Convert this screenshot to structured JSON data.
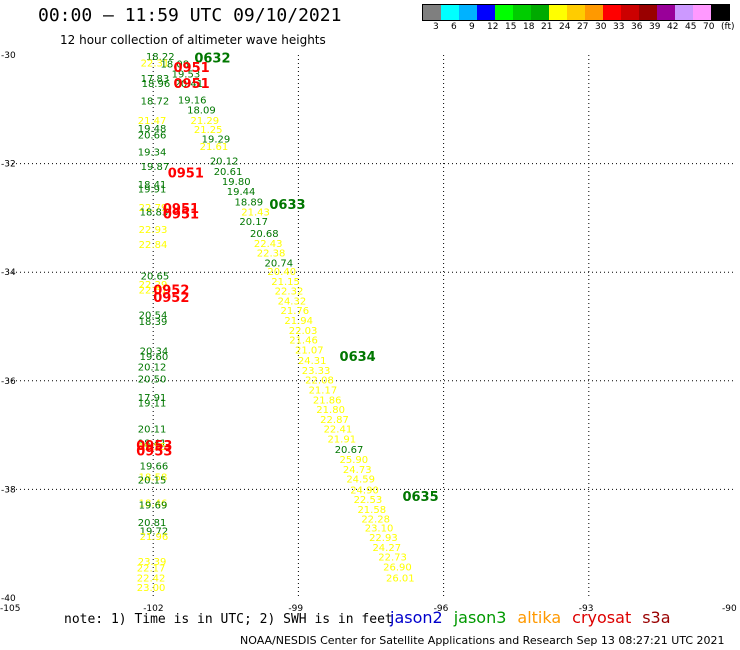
{
  "header": {
    "title": "00:00 – 11:59 UTC 09/10/2021",
    "subtitle": "12 hour collection of altimeter wave heights"
  },
  "legend": {
    "colors": [
      "#7f7f7f",
      "#00ffff",
      "#00b2ff",
      "#0000ff",
      "#00ff00",
      "#00cc00",
      "#00aa00",
      "#ffff00",
      "#ffcc00",
      "#ff9900",
      "#ff0000",
      "#cc0000",
      "#990000",
      "#990099",
      "#cc99ff",
      "#ff99ff",
      "#000000"
    ],
    "labels": [
      "3",
      "6",
      "9",
      "12",
      "15",
      "18",
      "21",
      "24",
      "27",
      "30",
      "33",
      "36",
      "39",
      "42",
      "45",
      "70",
      "(ft)"
    ]
  },
  "axes": {
    "lat_labels": [
      "-30",
      "-32",
      "-34",
      "-36",
      "-38",
      "-40"
    ],
    "lon_labels": [
      "-105",
      "-102",
      "-99",
      "-96",
      "-93",
      "-90"
    ]
  },
  "colors": {
    "green": "#007700",
    "yellow": "#ffff00",
    "red": "#ff0000"
  },
  "readings": [
    {
      "lon": -102.15,
      "lat": -30.02,
      "v": "18.22",
      "c": "green"
    },
    {
      "lon": -102.26,
      "lat": -30.14,
      "v": "22.31",
      "c": "yellow"
    },
    {
      "lon": -101.85,
      "lat": -30.16,
      "v": "18.08",
      "c": "green"
    },
    {
      "lon": -101.62,
      "lat": -30.34,
      "v": "19.53",
      "c": "green"
    },
    {
      "lon": -102.26,
      "lat": -30.42,
      "v": "17.83",
      "c": "green"
    },
    {
      "lon": -102.24,
      "lat": -30.52,
      "v": "18.96",
      "c": "green"
    },
    {
      "lon": -101.56,
      "lat": -30.52,
      "v": "20.41",
      "c": "green"
    },
    {
      "lon": -101.49,
      "lat": -30.82,
      "v": "19.16",
      "c": "green"
    },
    {
      "lon": -102.26,
      "lat": -30.84,
      "v": "18.72",
      "c": "green"
    },
    {
      "lon": -101.3,
      "lat": -31.0,
      "v": "18.09",
      "c": "green"
    },
    {
      "lon": -102.32,
      "lat": -31.2,
      "v": "21.47",
      "c": "yellow"
    },
    {
      "lon": -101.23,
      "lat": -31.2,
      "v": "21.29",
      "c": "yellow"
    },
    {
      "lon": -102.32,
      "lat": -31.34,
      "v": "19.48",
      "c": "green"
    },
    {
      "lon": -101.16,
      "lat": -31.36,
      "v": "21.25",
      "c": "yellow"
    },
    {
      "lon": -102.32,
      "lat": -31.46,
      "v": "20.66",
      "c": "green"
    },
    {
      "lon": -101.0,
      "lat": -31.54,
      "v": "19.29",
      "c": "green"
    },
    {
      "lon": -101.04,
      "lat": -31.68,
      "v": "21.61",
      "c": "yellow"
    },
    {
      "lon": -102.32,
      "lat": -31.78,
      "v": "19.34",
      "c": "green"
    },
    {
      "lon": -100.83,
      "lat": -31.94,
      "v": "20.12",
      "c": "green"
    },
    {
      "lon": -102.26,
      "lat": -32.04,
      "v": "19.87",
      "c": "green"
    },
    {
      "lon": -100.75,
      "lat": -32.14,
      "v": "20.61",
      "c": "green"
    },
    {
      "lon": -100.58,
      "lat": -32.32,
      "v": "19.80",
      "c": "green"
    },
    {
      "lon": -102.32,
      "lat": -32.38,
      "v": "18.41",
      "c": "green"
    },
    {
      "lon": -102.32,
      "lat": -32.46,
      "v": "19.91",
      "c": "green"
    },
    {
      "lon": -100.48,
      "lat": -32.5,
      "v": "19.44",
      "c": "green"
    },
    {
      "lon": -100.32,
      "lat": -32.7,
      "v": "18.89",
      "c": "green"
    },
    {
      "lon": -102.3,
      "lat": -32.8,
      "v": "22.79",
      "c": "yellow"
    },
    {
      "lon": -102.28,
      "lat": -32.88,
      "v": "18.83",
      "c": "green"
    },
    {
      "lon": -100.18,
      "lat": -32.88,
      "v": "21.43",
      "c": "yellow"
    },
    {
      "lon": -100.22,
      "lat": -33.06,
      "v": "20.17",
      "c": "green"
    },
    {
      "lon": -102.3,
      "lat": -33.2,
      "v": "22.93",
      "c": "yellow"
    },
    {
      "lon": -100.0,
      "lat": -33.28,
      "v": "20.68",
      "c": "green"
    },
    {
      "lon": -99.92,
      "lat": -33.46,
      "v": "22.43",
      "c": "yellow"
    },
    {
      "lon": -102.3,
      "lat": -33.48,
      "v": "22.84",
      "c": "yellow"
    },
    {
      "lon": -99.86,
      "lat": -33.64,
      "v": "22.38",
      "c": "yellow"
    },
    {
      "lon": -99.7,
      "lat": -33.82,
      "v": "20.74",
      "c": "green"
    },
    {
      "lon": -99.64,
      "lat": -33.98,
      "v": "20.40",
      "c": "yellow"
    },
    {
      "lon": -102.26,
      "lat": -34.06,
      "v": "20.65",
      "c": "green"
    },
    {
      "lon": -99.56,
      "lat": -34.16,
      "v": "21.15",
      "c": "yellow"
    },
    {
      "lon": -102.3,
      "lat": -34.22,
      "v": "22.29",
      "c": "yellow"
    },
    {
      "lon": -99.49,
      "lat": -34.34,
      "v": "22.32",
      "c": "yellow"
    },
    {
      "lon": -102.3,
      "lat": -34.32,
      "v": "22.51",
      "c": "yellow"
    },
    {
      "lon": -99.43,
      "lat": -34.52,
      "v": "24.32",
      "c": "yellow"
    },
    {
      "lon": -99.37,
      "lat": -34.7,
      "v": "21.76",
      "c": "yellow"
    },
    {
      "lon": -102.3,
      "lat": -34.78,
      "v": "20.54",
      "c": "green"
    },
    {
      "lon": -99.29,
      "lat": -34.88,
      "v": "21.94",
      "c": "yellow"
    },
    {
      "lon": -102.3,
      "lat": -34.9,
      "v": "18.39",
      "c": "green"
    },
    {
      "lon": -99.2,
      "lat": -35.06,
      "v": "22.03",
      "c": "yellow"
    },
    {
      "lon": -99.19,
      "lat": -35.24,
      "v": "21.46",
      "c": "yellow"
    },
    {
      "lon": -102.28,
      "lat": -35.44,
      "v": "20.34",
      "c": "green"
    },
    {
      "lon": -99.07,
      "lat": -35.42,
      "v": "21.07",
      "c": "yellow"
    },
    {
      "lon": -102.28,
      "lat": -35.54,
      "v": "19.60",
      "c": "green"
    },
    {
      "lon": -99.01,
      "lat": -35.62,
      "v": "24.31",
      "c": "yellow"
    },
    {
      "lon": -102.32,
      "lat": -35.74,
      "v": "20.12",
      "c": "green"
    },
    {
      "lon": -98.93,
      "lat": -35.8,
      "v": "23.33",
      "c": "yellow"
    },
    {
      "lon": -102.32,
      "lat": -35.96,
      "v": "20.50",
      "c": "green"
    },
    {
      "lon": -98.86,
      "lat": -35.98,
      "v": "22.08",
      "c": "yellow"
    },
    {
      "lon": -98.79,
      "lat": -36.16,
      "v": "21.17",
      "c": "yellow"
    },
    {
      "lon": -102.32,
      "lat": -36.3,
      "v": "17.91",
      "c": "green"
    },
    {
      "lon": -98.7,
      "lat": -36.34,
      "v": "21.86",
      "c": "yellow"
    },
    {
      "lon": -102.32,
      "lat": -36.4,
      "v": "19.11",
      "c": "green"
    },
    {
      "lon": -98.63,
      "lat": -36.52,
      "v": "21.80",
      "c": "yellow"
    },
    {
      "lon": -98.55,
      "lat": -36.7,
      "v": "22.87",
      "c": "yellow"
    },
    {
      "lon": -102.32,
      "lat": -36.88,
      "v": "20.11",
      "c": "green"
    },
    {
      "lon": -98.48,
      "lat": -36.88,
      "v": "22.41",
      "c": "yellow"
    },
    {
      "lon": -98.4,
      "lat": -37.06,
      "v": "21.91",
      "c": "yellow"
    },
    {
      "lon": -102.32,
      "lat": -37.14,
      "v": "18.41",
      "c": "green"
    },
    {
      "lon": -102.32,
      "lat": -37.2,
      "v": "19.55",
      "c": "yellow"
    },
    {
      "lon": -98.25,
      "lat": -37.26,
      "v": "20.67",
      "c": "green"
    },
    {
      "lon": -98.15,
      "lat": -37.44,
      "v": "25.90",
      "c": "yellow"
    },
    {
      "lon": -102.28,
      "lat": -37.56,
      "v": "19.66",
      "c": "green"
    },
    {
      "lon": -98.08,
      "lat": -37.62,
      "v": "24.73",
      "c": "yellow"
    },
    {
      "lon": -102.3,
      "lat": -37.76,
      "v": "18.58",
      "c": "yellow"
    },
    {
      "lon": -102.32,
      "lat": -37.82,
      "v": "20.15",
      "c": "green"
    },
    {
      "lon": -98.01,
      "lat": -37.8,
      "v": "24.59",
      "c": "yellow"
    },
    {
      "lon": -97.93,
      "lat": -38.0,
      "v": "24.90",
      "c": "yellow"
    },
    {
      "lon": -97.86,
      "lat": -38.18,
      "v": "22.53",
      "c": "yellow"
    },
    {
      "lon": -102.3,
      "lat": -38.24,
      "v": "18.46",
      "c": "yellow"
    },
    {
      "lon": -102.3,
      "lat": -38.28,
      "v": "19.69",
      "c": "green"
    },
    {
      "lon": -97.78,
      "lat": -38.36,
      "v": "21.58",
      "c": "yellow"
    },
    {
      "lon": -97.7,
      "lat": -38.54,
      "v": "22.28",
      "c": "yellow"
    },
    {
      "lon": -102.32,
      "lat": -38.6,
      "v": "20.81",
      "c": "green"
    },
    {
      "lon": -97.63,
      "lat": -38.7,
      "v": "23.10",
      "c": "yellow"
    },
    {
      "lon": -102.28,
      "lat": -38.76,
      "v": "19.72",
      "c": "green"
    },
    {
      "lon": -102.28,
      "lat": -38.86,
      "v": "21.96",
      "c": "yellow"
    },
    {
      "lon": -97.54,
      "lat": -38.88,
      "v": "22.93",
      "c": "yellow"
    },
    {
      "lon": -97.47,
      "lat": -39.06,
      "v": "24.27",
      "c": "yellow"
    },
    {
      "lon": -97.35,
      "lat": -39.24,
      "v": "22.73",
      "c": "yellow"
    },
    {
      "lon": -102.32,
      "lat": -39.32,
      "v": "23.39",
      "c": "yellow"
    },
    {
      "lon": -102.34,
      "lat": -39.44,
      "v": "22.17",
      "c": "yellow"
    },
    {
      "lon": -97.25,
      "lat": -39.42,
      "v": "26.90",
      "c": "yellow"
    },
    {
      "lon": -102.34,
      "lat": -39.62,
      "v": "22.42",
      "c": "yellow"
    },
    {
      "lon": -97.19,
      "lat": -39.62,
      "v": "26.01",
      "c": "yellow"
    },
    {
      "lon": -102.34,
      "lat": -39.8,
      "v": "23.00",
      "c": "yellow"
    }
  ],
  "pass_times": [
    {
      "lon": -101.15,
      "lat": -30.05,
      "t": "0632",
      "c": "green"
    },
    {
      "lon": -101.58,
      "lat": -30.22,
      "t": "0951",
      "c": "red"
    },
    {
      "lon": -101.58,
      "lat": -30.52,
      "t": "0951",
      "c": "red"
    },
    {
      "lon": -101.7,
      "lat": -32.16,
      "t": "0951",
      "c": "red"
    },
    {
      "lon": -99.6,
      "lat": -32.74,
      "t": "0633",
      "c": "green"
    },
    {
      "lon": -101.8,
      "lat": -32.82,
      "t": "0951",
      "c": "red"
    },
    {
      "lon": -101.8,
      "lat": -32.92,
      "t": "0951",
      "c": "red"
    },
    {
      "lon": -102.0,
      "lat": -34.32,
      "t": "0952",
      "c": "red"
    },
    {
      "lon": -102.0,
      "lat": -34.46,
      "t": "0952",
      "c": "red"
    },
    {
      "lon": -98.15,
      "lat": -35.54,
      "t": "0634",
      "c": "green"
    },
    {
      "lon": -102.35,
      "lat": -37.18,
      "t": "0953",
      "c": "red"
    },
    {
      "lon": -102.35,
      "lat": -37.28,
      "t": "0953",
      "c": "red"
    },
    {
      "lon": -96.85,
      "lat": -38.12,
      "t": "0635",
      "c": "green"
    }
  ],
  "footer": {
    "note": "note: 1) Time is in UTC; 2) SWH is in feet",
    "satellites": [
      {
        "name": "jason2",
        "color": "#0000cc"
      },
      {
        "name": "jason3",
        "color": "#009900"
      },
      {
        "name": "altika",
        "color": "#ff9900"
      },
      {
        "name": "cryosat",
        "color": "#dd0000"
      },
      {
        "name": "s3a",
        "color": "#990000"
      }
    ],
    "credit": "NOAA/NESDIS Center for Satellite Applications and Research    Sep 13 08:27:21 UTC 2021"
  }
}
